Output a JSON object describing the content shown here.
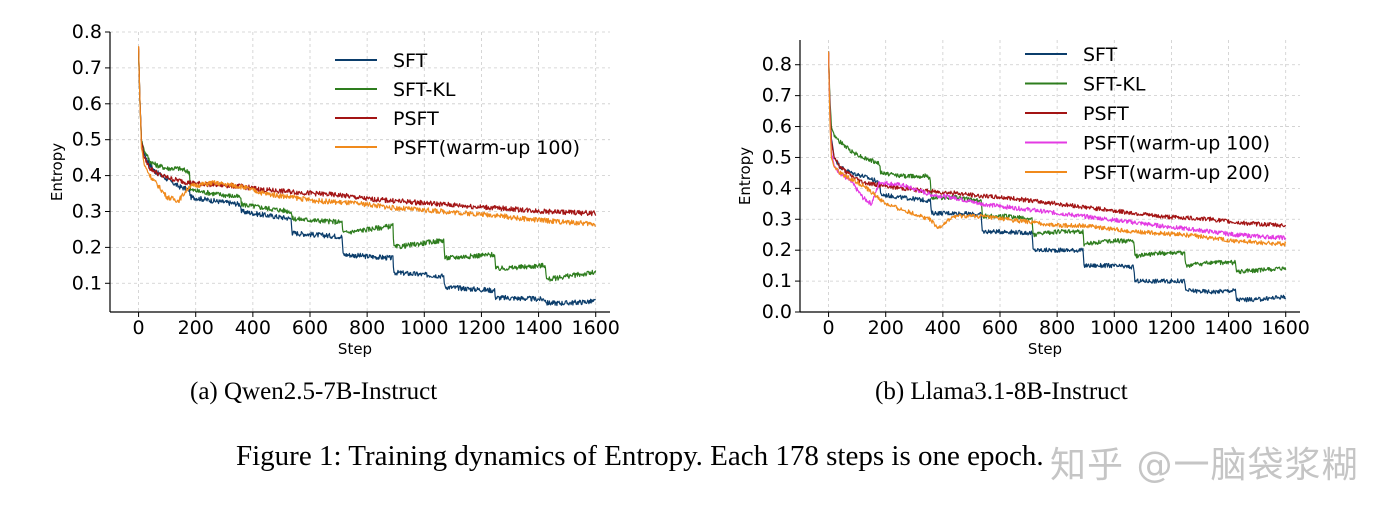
{
  "chart_data": [
    {
      "type": "line",
      "xlabel": "Step",
      "ylabel": "Entropy",
      "xlim": [
        -100,
        1650
      ],
      "ylim": [
        0.02,
        0.8
      ],
      "xticks": [
        0,
        200,
        400,
        600,
        800,
        1000,
        1200,
        1400,
        1600
      ],
      "yticks": [
        0.1,
        0.2,
        0.3,
        0.4,
        0.5,
        0.6,
        0.7,
        0.8
      ],
      "grid": true,
      "legend_position": "top-right",
      "series": [
        {
          "name": "SFT",
          "color": "#0b3d6b",
          "x": [
            0,
            5,
            10,
            20,
            40,
            60,
            100,
            140,
            178,
            182,
            260,
            356,
            360,
            440,
            534,
            538,
            620,
            712,
            716,
            800,
            890,
            894,
            980,
            1068,
            1072,
            1150,
            1246,
            1250,
            1340,
            1424,
            1428,
            1500,
            1600
          ],
          "y": [
            0.75,
            0.6,
            0.5,
            0.46,
            0.43,
            0.41,
            0.39,
            0.37,
            0.36,
            0.34,
            0.33,
            0.32,
            0.3,
            0.29,
            0.28,
            0.24,
            0.235,
            0.23,
            0.18,
            0.175,
            0.17,
            0.13,
            0.125,
            0.12,
            0.09,
            0.085,
            0.08,
            0.06,
            0.058,
            0.055,
            0.045,
            0.045,
            0.05
          ]
        },
        {
          "name": "SFT-KL",
          "color": "#2e7d1e",
          "x": [
            0,
            5,
            10,
            20,
            40,
            60,
            100,
            140,
            178,
            182,
            260,
            356,
            360,
            440,
            534,
            538,
            620,
            712,
            716,
            800,
            890,
            894,
            980,
            1068,
            1072,
            1150,
            1246,
            1250,
            1340,
            1424,
            1428,
            1500,
            1600
          ],
          "y": [
            0.75,
            0.6,
            0.5,
            0.47,
            0.44,
            0.43,
            0.42,
            0.42,
            0.41,
            0.36,
            0.35,
            0.34,
            0.32,
            0.31,
            0.3,
            0.28,
            0.275,
            0.27,
            0.24,
            0.25,
            0.26,
            0.2,
            0.21,
            0.22,
            0.17,
            0.175,
            0.18,
            0.14,
            0.145,
            0.15,
            0.11,
            0.12,
            0.13
          ]
        },
        {
          "name": "PSFT",
          "color": "#a31414",
          "x": [
            0,
            5,
            10,
            20,
            40,
            80,
            120,
            178,
            260,
            356,
            440,
            534,
            620,
            712,
            800,
            890,
            980,
            1068,
            1150,
            1246,
            1340,
            1424,
            1500,
            1600
          ],
          "y": [
            0.76,
            0.6,
            0.5,
            0.45,
            0.42,
            0.4,
            0.39,
            0.38,
            0.375,
            0.37,
            0.36,
            0.355,
            0.35,
            0.345,
            0.335,
            0.33,
            0.325,
            0.32,
            0.315,
            0.31,
            0.305,
            0.3,
            0.298,
            0.295
          ]
        },
        {
          "name": "PSFT(warm-up 100)",
          "color": "#f08a1c",
          "x": [
            0,
            5,
            10,
            20,
            40,
            60,
            80,
            100,
            140,
            178,
            260,
            356,
            440,
            534,
            620,
            712,
            800,
            890,
            980,
            1068,
            1150,
            1246,
            1340,
            1424,
            1500,
            1600
          ],
          "y": [
            0.76,
            0.6,
            0.48,
            0.43,
            0.4,
            0.38,
            0.36,
            0.34,
            0.33,
            0.37,
            0.38,
            0.37,
            0.35,
            0.34,
            0.33,
            0.325,
            0.32,
            0.31,
            0.305,
            0.3,
            0.295,
            0.29,
            0.28,
            0.275,
            0.27,
            0.265
          ]
        }
      ]
    },
    {
      "type": "line",
      "xlabel": "Step",
      "ylabel": "Entropy",
      "xlim": [
        -100,
        1650
      ],
      "ylim": [
        0,
        0.88
      ],
      "xticks": [
        0,
        200,
        400,
        600,
        800,
        1000,
        1200,
        1400,
        1600
      ],
      "yticks": [
        0.0,
        0.1,
        0.2,
        0.3,
        0.4,
        0.5,
        0.6,
        0.7,
        0.8
      ],
      "grid": true,
      "legend_position": "top-right",
      "series": [
        {
          "name": "SFT",
          "color": "#0b3d6b",
          "x": [
            0,
            5,
            10,
            20,
            40,
            80,
            120,
            178,
            182,
            260,
            356,
            360,
            440,
            534,
            538,
            620,
            712,
            716,
            800,
            890,
            894,
            980,
            1068,
            1072,
            1150,
            1246,
            1250,
            1340,
            1424,
            1428,
            1500,
            1600
          ],
          "y": [
            0.84,
            0.65,
            0.56,
            0.5,
            0.47,
            0.45,
            0.44,
            0.42,
            0.38,
            0.37,
            0.36,
            0.32,
            0.32,
            0.315,
            0.26,
            0.26,
            0.255,
            0.2,
            0.2,
            0.2,
            0.15,
            0.15,
            0.145,
            0.1,
            0.1,
            0.1,
            0.07,
            0.065,
            0.07,
            0.04,
            0.04,
            0.05
          ]
        },
        {
          "name": "SFT-KL",
          "color": "#2e7d1e",
          "x": [
            0,
            5,
            10,
            20,
            40,
            80,
            120,
            178,
            182,
            260,
            340,
            356,
            360,
            440,
            534,
            538,
            620,
            712,
            716,
            800,
            890,
            894,
            980,
            1068,
            1072,
            1150,
            1246,
            1250,
            1340,
            1424,
            1428,
            1500,
            1600
          ],
          "y": [
            0.84,
            0.68,
            0.6,
            0.57,
            0.55,
            0.52,
            0.5,
            0.48,
            0.45,
            0.44,
            0.44,
            0.43,
            0.37,
            0.37,
            0.36,
            0.31,
            0.31,
            0.3,
            0.25,
            0.26,
            0.26,
            0.22,
            0.23,
            0.23,
            0.18,
            0.19,
            0.19,
            0.15,
            0.16,
            0.16,
            0.13,
            0.135,
            0.14
          ]
        },
        {
          "name": "PSFT",
          "color": "#a31414",
          "x": [
            0,
            5,
            10,
            20,
            40,
            80,
            120,
            178,
            260,
            356,
            440,
            534,
            620,
            712,
            800,
            890,
            980,
            1068,
            1150,
            1246,
            1340,
            1424,
            1500,
            1600
          ],
          "y": [
            0.84,
            0.65,
            0.55,
            0.5,
            0.47,
            0.44,
            0.42,
            0.41,
            0.4,
            0.39,
            0.385,
            0.375,
            0.37,
            0.36,
            0.35,
            0.34,
            0.33,
            0.32,
            0.31,
            0.305,
            0.3,
            0.29,
            0.285,
            0.28
          ]
        },
        {
          "name": "PSFT(warm-up 100)",
          "color": "#e33be3",
          "x": [
            0,
            5,
            10,
            20,
            40,
            80,
            120,
            150,
            178,
            260,
            356,
            440,
            534,
            620,
            712,
            800,
            890,
            980,
            1068,
            1150,
            1246,
            1340,
            1424,
            1500,
            1600
          ],
          "y": [
            0.84,
            0.62,
            0.52,
            0.47,
            0.45,
            0.42,
            0.37,
            0.35,
            0.42,
            0.41,
            0.38,
            0.37,
            0.35,
            0.34,
            0.33,
            0.32,
            0.31,
            0.3,
            0.29,
            0.28,
            0.27,
            0.26,
            0.25,
            0.245,
            0.24
          ]
        },
        {
          "name": "PSFT(warm-up 200)",
          "color": "#f08a1c",
          "x": [
            0,
            5,
            10,
            20,
            40,
            80,
            120,
            160,
            200,
            260,
            356,
            380,
            440,
            534,
            620,
            712,
            800,
            890,
            980,
            1068,
            1150,
            1246,
            1340,
            1424,
            1500,
            1600
          ],
          "y": [
            0.84,
            0.6,
            0.5,
            0.47,
            0.45,
            0.43,
            0.41,
            0.38,
            0.35,
            0.33,
            0.3,
            0.27,
            0.31,
            0.31,
            0.3,
            0.29,
            0.28,
            0.28,
            0.27,
            0.26,
            0.255,
            0.25,
            0.24,
            0.23,
            0.225,
            0.22
          ]
        }
      ]
    }
  ],
  "captions": {
    "sub_a": "(a) Qwen2.5-7B-Instruct",
    "sub_b": "(b) Llama3.1-8B-Instruct",
    "figure": "Figure 1: Training dynamics of Entropy. Each 178 steps is one epoch."
  },
  "watermark": "知乎 @一脑袋浆糊"
}
